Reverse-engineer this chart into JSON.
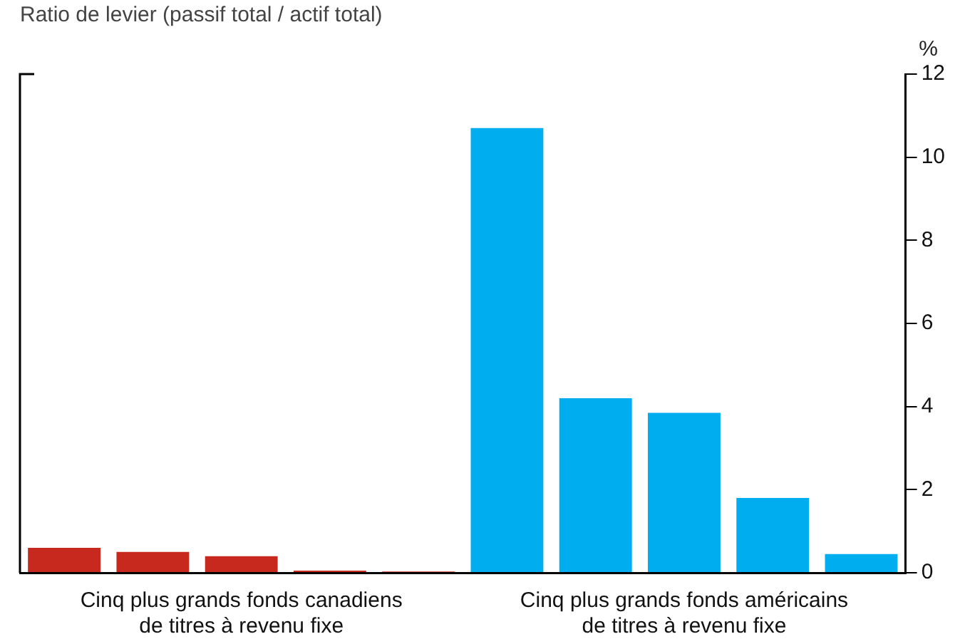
{
  "chart_data": {
    "type": "bar",
    "title": "Ratio de levier (passif total / actif total)",
    "ylabel": "%",
    "categories": [
      null,
      null,
      "Cinq plus grands fonds canadiens\nde titres à revenu fixe",
      null,
      null,
      null,
      null,
      "Cinq plus grands fonds américains\nde titres à revenu fixe",
      null,
      null
    ],
    "values": [
      0.6,
      0.5,
      0.4,
      0.05,
      0.03,
      10.7,
      4.2,
      3.85,
      1.8,
      0.45
    ],
    "colors": [
      "#c8291f",
      "#c8291f",
      "#c8291f",
      "#c8291f",
      "#c8291f",
      "#00adee",
      "#00adee",
      "#00adee",
      "#00adee",
      "#00adee"
    ],
    "ylim": [
      0,
      12
    ],
    "yticks": [
      0,
      2,
      4,
      6,
      8,
      10,
      12
    ],
    "grid": false,
    "legend": false
  }
}
